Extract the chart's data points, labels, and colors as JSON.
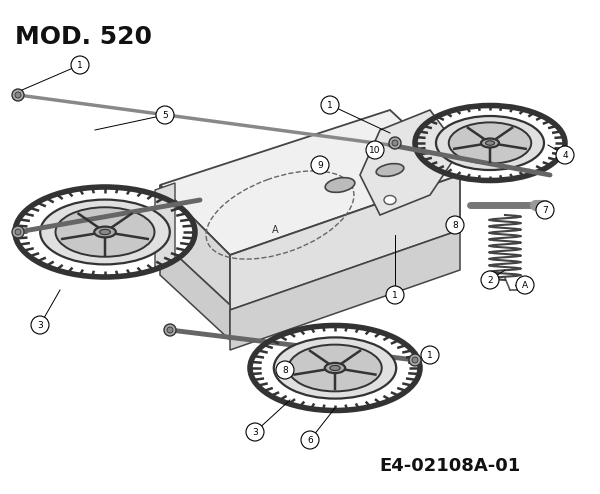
{
  "title": "MOD. 520",
  "part_number": "E4-02108A-01",
  "title_fontsize": 18,
  "part_number_fontsize": 13,
  "bg_color": "#ffffff",
  "text_color": "#111111",
  "fig_width": 6.0,
  "fig_height": 4.94,
  "dpi": 100,
  "wheel_color": "#333333",
  "frame_color": "#444444",
  "line_color": "#555555"
}
